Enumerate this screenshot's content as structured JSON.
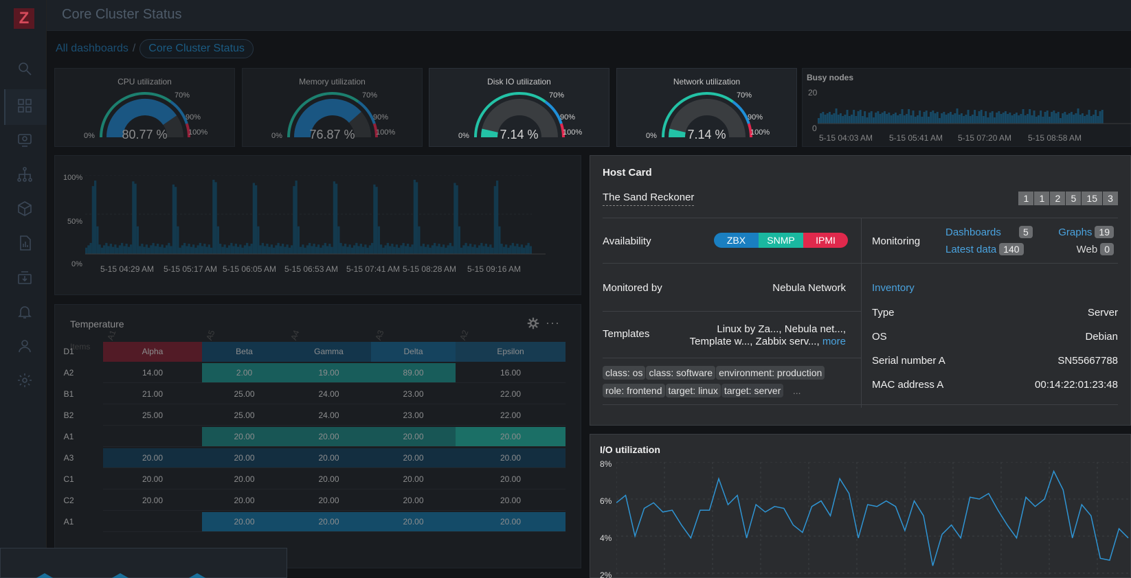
{
  "app": {
    "logo": "Z",
    "page_title": "Core Cluster Status"
  },
  "sidebar": {
    "icons": [
      "search-icon",
      "dashboard-icon",
      "monitoring-icon",
      "hierarchy-icon",
      "inventory-box-icon",
      "reports-icon",
      "data-collection-icon",
      "alerts-bell-icon",
      "users-icon",
      "gear-icon"
    ]
  },
  "breadcrumb": {
    "root": "All dashboards",
    "separator": "/",
    "current": "Core Cluster Status"
  },
  "gauges": [
    {
      "title": "CPU utilization",
      "value": "80.77 %",
      "fraction": 0.8077,
      "min": "0%",
      "t70": "70%",
      "t90": "90%",
      "max": "100%"
    },
    {
      "title": "Memory utilization",
      "value": "76.87 %",
      "fraction": 0.7687,
      "min": "0%",
      "t70": "70%",
      "t90": "90%",
      "max": "100%"
    },
    {
      "title": "Disk IO utilization",
      "value": "7.14 %",
      "fraction": 0.0714,
      "min": "0%",
      "t70": "70%",
      "t90": "90%",
      "max": "100%"
    },
    {
      "title": "Network utilization",
      "value": "7.14 %",
      "fraction": 0.0714,
      "min": "0%",
      "t70": "70%",
      "t90": "90%",
      "max": "100%"
    }
  ],
  "colors": {
    "gauge_blue": "#1f7fc4",
    "gauge_teal": "#23c2a6",
    "threshold_blue": "#1f8fd8",
    "threshold_red": "#e2284f",
    "zbx": "#1a7fc1",
    "snmp": "#1ab8a0",
    "ipmi": "#e0294c"
  },
  "busy_nodes": {
    "title": "Busy nodes",
    "y_ticks": [
      "20",
      "0"
    ],
    "x_ticks": [
      "5-15 04:03 AM",
      "5-15 05:41 AM",
      "5-15 07:20 AM",
      "5-15 08:58 AM"
    ]
  },
  "usage_graph": {
    "y_ticks": [
      "100%",
      "50%",
      "0%"
    ],
    "x_ticks": [
      "5-15 04:29 AM",
      "5-15 05:17 AM",
      "5-15 06:05 AM",
      "5-15 06:53 AM",
      "5-15 07:41 AM",
      "5-15 08:28 AM",
      "5-15 09:16 AM"
    ]
  },
  "temperature": {
    "title": "Temperature",
    "items_label": "Items",
    "columns": [
      "A1",
      "A5",
      "A4",
      "A3",
      "A2"
    ],
    "header_row": {
      "label": "D1",
      "cells": [
        "Alpha",
        "Beta",
        "Gamma",
        "Delta",
        "Epsilon"
      ]
    },
    "rows": [
      {
        "label": "A2",
        "cells": [
          "14.00",
          "2.00",
          "19.00",
          "89.00",
          "16.00"
        ]
      },
      {
        "label": "B1",
        "cells": [
          "21.00",
          "25.00",
          "24.00",
          "23.00",
          "22.00"
        ]
      },
      {
        "label": "B2",
        "cells": [
          "25.00",
          "25.00",
          "24.00",
          "23.00",
          "22.00"
        ]
      },
      {
        "label": "A1",
        "cells": [
          "",
          "20.00",
          "20.00",
          "20.00",
          "20.00"
        ]
      },
      {
        "label": "A3",
        "cells": [
          "20.00",
          "20.00",
          "20.00",
          "20.00",
          "20.00"
        ]
      },
      {
        "label": "C1",
        "cells": [
          "20.00",
          "20.00",
          "20.00",
          "20.00",
          "20.00"
        ]
      },
      {
        "label": "C2",
        "cells": [
          "20.00",
          "20.00",
          "20.00",
          "20.00",
          "20.00"
        ]
      },
      {
        "label": "A1",
        "cells": [
          "",
          "20.00",
          "20.00",
          "20.00",
          "20.00"
        ]
      }
    ]
  },
  "host_card": {
    "title": "Host Card",
    "host_name": "The Sand Reckoner",
    "problem_counts": [
      "1",
      "1",
      "2",
      "5",
      "15",
      "3"
    ],
    "availability_label": "Availability",
    "availability": [
      "ZBX",
      "SNMP",
      "IPMI"
    ],
    "monitored_by_label": "Monitored by",
    "monitored_by": "Nebula Network",
    "templates_label": "Templates",
    "templates_line1": "Linux by Za..., Nebula net...,",
    "templates_line2": "Template w..., Zabbix serv...,",
    "templates_more": "more",
    "tags": [
      "class: os",
      "class: software",
      "environment: production",
      "role: frontend",
      "target: linux",
      "target: server"
    ],
    "tags_more": "...",
    "monitoring_label": "Monitoring",
    "monitoring": {
      "dashboards": "Dashboards",
      "dashboards_count": "5",
      "graphs": "Graphs",
      "graphs_count": "19",
      "latest_data": "Latest data",
      "latest_data_count": "140",
      "web": "Web",
      "web_count": "0"
    },
    "inventory_label": "Inventory",
    "inventory": [
      {
        "key": "Type",
        "value": "Server"
      },
      {
        "key": "OS",
        "value": "Debian"
      },
      {
        "key": "Serial number A",
        "value": "SN55667788"
      },
      {
        "key": "MAC address A",
        "value": "00:14:22:01:23:48"
      }
    ]
  },
  "io_utilization": {
    "title": "I/O utilization",
    "y_ticks": [
      "8%",
      "6%",
      "4%",
      "2%"
    ],
    "values": [
      5.8,
      6.2,
      4.0,
      5.5,
      5.8,
      5.3,
      5.4,
      4.6,
      3.9,
      5.4,
      5.4,
      7.1,
      5.7,
      6.2,
      3.9,
      5.7,
      5.3,
      5.6,
      5.5,
      4.6,
      4.2,
      5.6,
      5.9,
      5.1,
      7.1,
      6.3,
      3.9,
      5.7,
      5.6,
      5.9,
      5.6,
      4.3,
      5.9,
      5.1,
      2.4,
      4.1,
      4.6,
      3.9,
      6.1,
      6.0,
      6.3,
      5.4,
      4.6,
      3.9,
      6.1,
      5.6,
      6.0,
      7.5,
      6.5,
      3.9,
      5.7,
      5.1,
      2.8,
      2.7,
      4.4,
      3.9
    ]
  }
}
